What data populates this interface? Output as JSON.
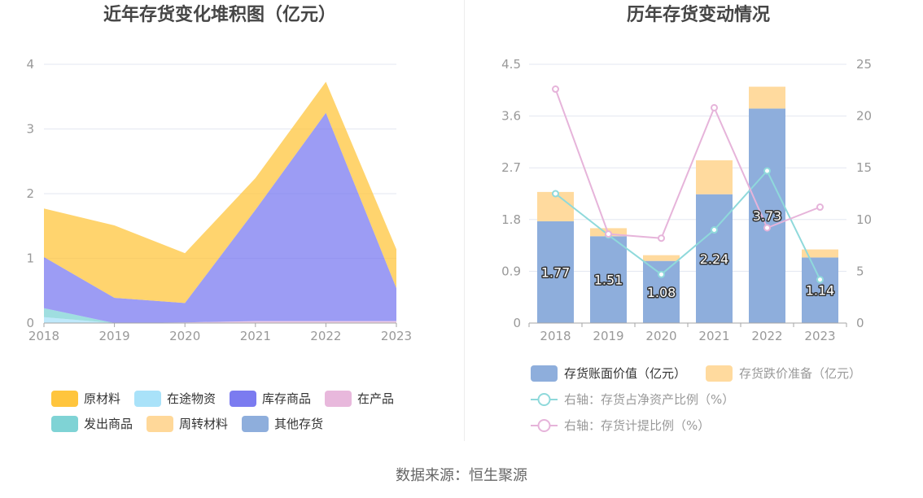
{
  "footer": {
    "source": "数据来源：恒生聚源"
  },
  "chart_data": [
    {
      "type": "area",
      "stacked": true,
      "title": "近年存货变化堆积图（亿元）",
      "categories": [
        "2018",
        "2019",
        "2020",
        "2021",
        "2022",
        "2023"
      ],
      "ylim": [
        0,
        4
      ],
      "yticks": [
        "0",
        "1",
        "2",
        "3",
        "4"
      ],
      "grid": true,
      "legend_position": "bottom",
      "series": [
        {
          "name": "原材料",
          "color": "#FFC53D",
          "values": [
            0.75,
            1.12,
            0.77,
            0.49,
            0.48,
            0.6
          ]
        },
        {
          "name": "在途物资",
          "color": "#A9E2F9",
          "values": [
            0.09,
            0,
            0,
            0,
            0,
            0
          ]
        },
        {
          "name": "库存商品",
          "color": "#7B7BF0",
          "values": [
            0.79,
            0.39,
            0.3,
            1.72,
            3.22,
            0.51
          ]
        },
        {
          "name": "在产品",
          "color": "#E8B8DC",
          "values": [
            0,
            0,
            0.01,
            0.03,
            0.03,
            0.03
          ]
        },
        {
          "name": "发出商品",
          "color": "#7FD3D5",
          "values": [
            0.14,
            0,
            0,
            0,
            0,
            0
          ]
        },
        {
          "name": "周转材料",
          "color": "#FFD899",
          "values": [
            0,
            0,
            0,
            0,
            0,
            0
          ]
        },
        {
          "name": "其他存货",
          "color": "#8EAEDC",
          "values": [
            0,
            0,
            0,
            0,
            0,
            0
          ]
        }
      ]
    },
    {
      "type": "bar",
      "stacked": true,
      "title": "历年存货变动情况",
      "categories": [
        "2018",
        "2019",
        "2020",
        "2021",
        "2022",
        "2023"
      ],
      "ylim": [
        0,
        4.5
      ],
      "yticks": [
        "0",
        "0.9",
        "1.8",
        "2.7",
        "3.6",
        "4.5"
      ],
      "y2lim": [
        0,
        25
      ],
      "y2ticks": [
        "0",
        "5",
        "10",
        "15",
        "20",
        "25"
      ],
      "grid": true,
      "legend_position": "bottom",
      "series": [
        {
          "name": "存货账面价值（亿元）",
          "type": "bar",
          "y_axis": "left",
          "color": "#8EAEDC",
          "data_labels": true,
          "values": [
            1.77,
            1.51,
            1.08,
            2.24,
            3.73,
            1.14
          ]
        },
        {
          "name": "存货跌价准备（亿元）",
          "type": "bar",
          "y_axis": "left",
          "color": "#FFDA9E",
          "values": [
            0.51,
            0.14,
            0.1,
            0.59,
            0.38,
            0.14
          ]
        },
        {
          "name": "右轴：存货占净资产比例（%）",
          "type": "line",
          "y_axis": "right",
          "color": "#8FD9DB",
          "values": [
            12.5,
            8.5,
            4.7,
            9.0,
            14.7,
            4.2
          ]
        },
        {
          "name": "右轴：存货计提比例（%）",
          "type": "line",
          "y_axis": "right",
          "color": "#E6B4DA",
          "values": [
            22.6,
            8.6,
            8.2,
            20.8,
            9.2,
            11.2
          ]
        }
      ]
    }
  ]
}
